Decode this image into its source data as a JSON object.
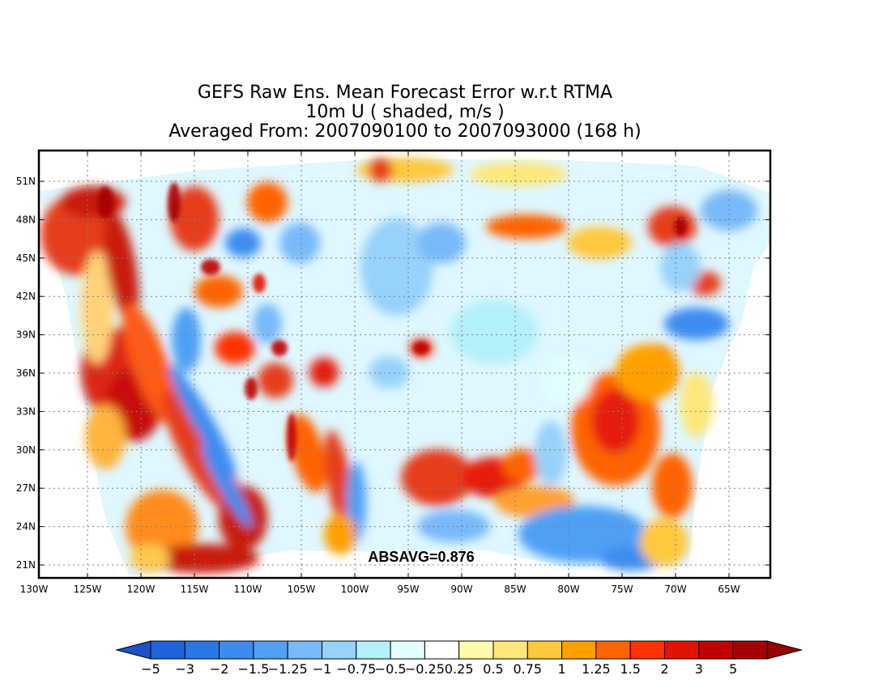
{
  "title": {
    "line1": "GEFS Raw Ens. Mean Forecast Error w.r.t RTMA",
    "line2": "10m U ( shaded, m/s )",
    "line3": "Averaged From: 2007090100 to 2007093000 (168 h)"
  },
  "annotation": "ABSAVG=0.876",
  "axes": {
    "lon_labels": [
      "130W",
      "125W",
      "120W",
      "115W",
      "110W",
      "105W",
      "100W",
      "95W",
      "90W",
      "85W",
      "80W",
      "75W",
      "70W",
      "65W"
    ],
    "lat_labels": [
      "51N",
      "48N",
      "45N",
      "42N",
      "39N",
      "36N",
      "33N",
      "30N",
      "27N",
      "24N",
      "21N"
    ]
  },
  "colorbar": {
    "labels": [
      "-5",
      "-3",
      "-2",
      "-1.5",
      "-1.25",
      "-1",
      "-0.75",
      "-0.5",
      "-0.25",
      "0.25",
      "0.5",
      "0.75",
      "1",
      "1.25",
      "1.5",
      "2",
      "3",
      "5"
    ],
    "colors": [
      "#1e64dc",
      "#2878e6",
      "#3c8cf0",
      "#50a0f5",
      "#78b9fa",
      "#96d2fa",
      "#b4f0fa",
      "#e1ffff",
      "#ffffff",
      "#fffaaa",
      "#ffe678",
      "#ffc83c",
      "#ffa000",
      "#ff6400",
      "#ff3200",
      "#e11400",
      "#c00000",
      "#a50000"
    ],
    "left_arrow_color": "#1e50c8",
    "right_arrow_color": "#960000"
  },
  "style": {
    "grid_color": "#808080",
    "frame_color": "#000000"
  }
}
